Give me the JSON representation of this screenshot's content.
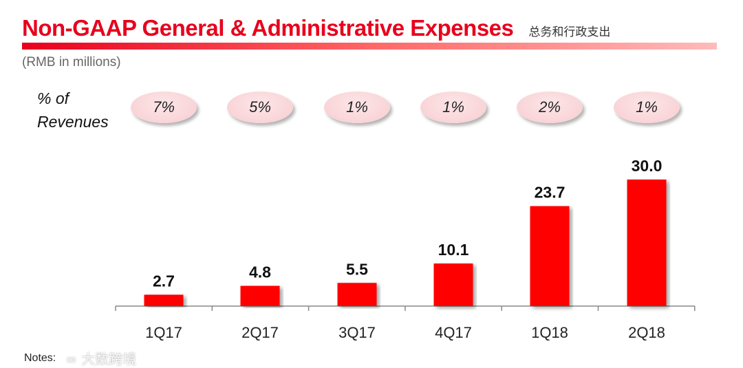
{
  "header": {
    "title": "Non-GAAP General & Administrative Expenses",
    "subtitle_cn": "总务和行政支出",
    "unit": "(RMB in millions)"
  },
  "pct_of_revenues": {
    "label_line1": "% of",
    "label_line2": "Revenues",
    "values": [
      "7%",
      "5%",
      "1%",
      "1%",
      "2%",
      "1%"
    ]
  },
  "chart_data": {
    "type": "bar",
    "categories": [
      "1Q17",
      "2Q17",
      "3Q17",
      "4Q17",
      "1Q18",
      "2Q18"
    ],
    "values": [
      2.7,
      4.8,
      5.5,
      10.1,
      23.7,
      30.0
    ],
    "data_labels": [
      "2.7",
      "4.8",
      "5.5",
      "10.1",
      "23.7",
      "30.0"
    ],
    "ylim": [
      0,
      30
    ],
    "grid": false,
    "bar_color": "#ff0000"
  },
  "footer": {
    "notes": "Notes:",
    "watermark": "大数跨境"
  }
}
